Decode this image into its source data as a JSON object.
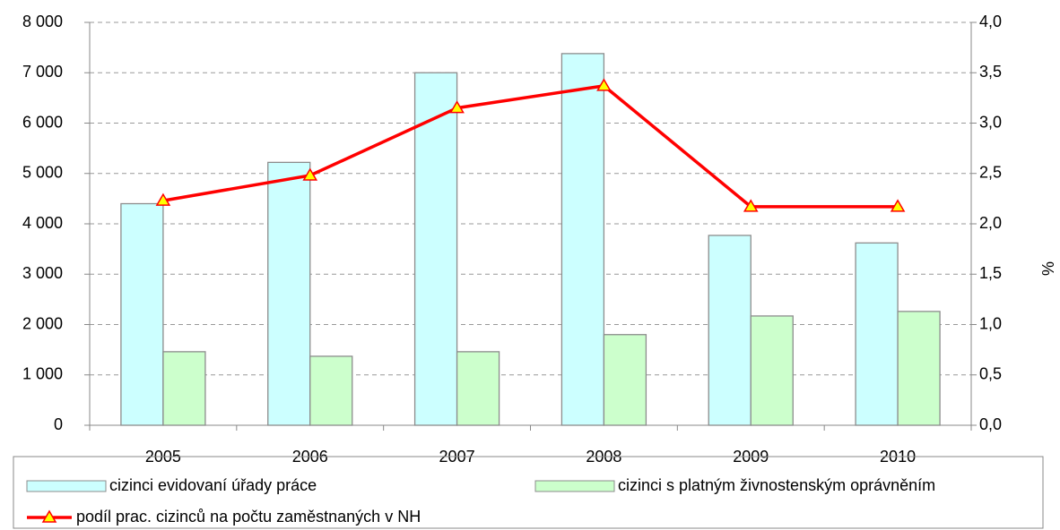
{
  "chart_data": {
    "type": "bar",
    "categories": [
      "2005",
      "2006",
      "2007",
      "2008",
      "2009",
      "2010"
    ],
    "series": [
      {
        "name": "cizinci evidovaní úřady práce",
        "type": "bar",
        "color": "#ccffff",
        "values": [
          4400,
          5220,
          7000,
          7380,
          3770,
          3620
        ]
      },
      {
        "name": "cizinci s platným živnostenským oprávněním",
        "type": "bar",
        "color": "#ccffcc",
        "values": [
          1460,
          1370,
          1460,
          1800,
          2170,
          2260
        ]
      },
      {
        "name": "podíl prac. cizinců na počtu zaměstnaných v NH",
        "type": "line",
        "axis": "y2",
        "color": "#ff0000",
        "marker_color": "#ffff00",
        "values": [
          2.23,
          2.48,
          3.15,
          3.37,
          2.17,
          2.17
        ]
      }
    ],
    "ylim": [
      0,
      8000
    ],
    "yticks": [
      0,
      {
        "value": 1000,
        "label": "1 000"
      },
      {
        "value": 2000,
        "label": "2 000"
      },
      {
        "value": 3000,
        "label": "3 000"
      },
      {
        "value": 4000,
        "label": "4 000"
      },
      {
        "value": 5000,
        "label": "5 000"
      },
      {
        "value": 6000,
        "label": "6 000"
      },
      {
        "value": 7000,
        "label": "7 000"
      },
      {
        "value": 8000,
        "label": "8 000"
      }
    ],
    "y2label": "%",
    "y2lim": [
      0,
      4
    ],
    "y2ticks": [
      {
        "value": 0,
        "label": "0,0"
      },
      {
        "value": 0.5,
        "label": "0,5"
      },
      {
        "value": 1,
        "label": "1,0"
      },
      {
        "value": 1.5,
        "label": "1,5"
      },
      {
        "value": 2,
        "label": "2,0"
      },
      {
        "value": 2.5,
        "label": "2,5"
      },
      {
        "value": 3,
        "label": "3,0"
      },
      {
        "value": 3.5,
        "label": "3,5"
      },
      {
        "value": 4,
        "label": "4,0"
      }
    ],
    "grid": true,
    "legend": "bottom"
  }
}
